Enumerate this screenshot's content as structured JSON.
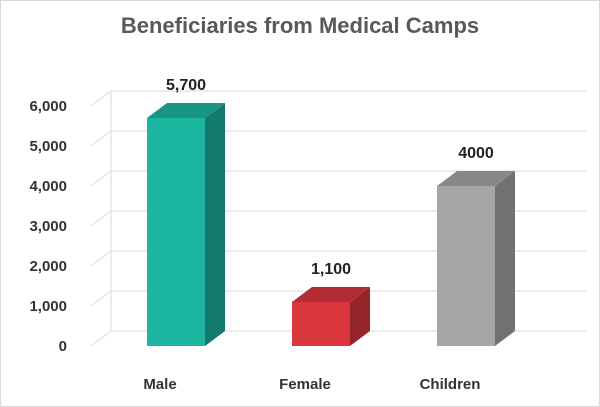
{
  "chart_data": {
    "type": "bar",
    "title": "Beneficiaries from Medical Camps",
    "xlabel": "",
    "ylabel": "",
    "categories": [
      "Male",
      "Female",
      "Children"
    ],
    "values": [
      5700,
      1100,
      4000
    ],
    "data_labels": [
      "5,700",
      "1,100",
      "4000"
    ],
    "colors": [
      "#1cb5a0",
      "#d9363e",
      "#a6a6a6"
    ],
    "ylim": [
      0,
      6000
    ],
    "yticks": [
      0,
      1000,
      2000,
      3000,
      4000,
      5000,
      6000
    ],
    "ytick_labels": [
      "0",
      "1,000",
      "2,000",
      "3,000",
      "4,000",
      "5,000",
      "6,000"
    ],
    "grid": true,
    "legend": "none",
    "style": "3d-column"
  }
}
